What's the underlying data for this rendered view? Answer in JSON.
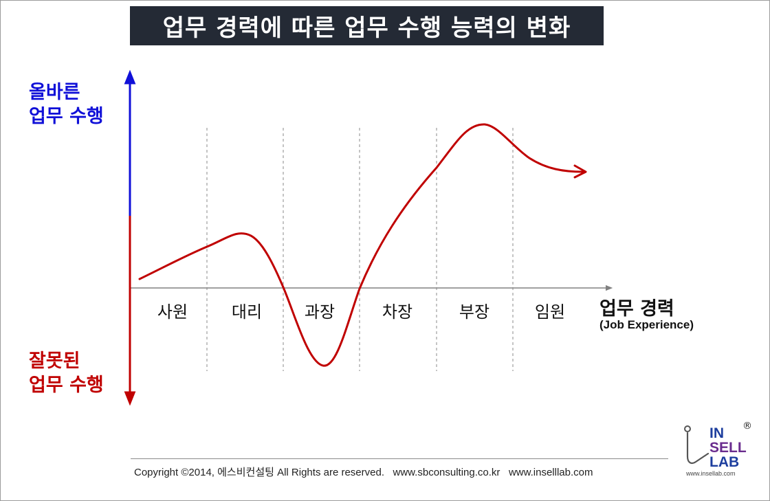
{
  "title": "업무 경력에 따른 업무 수행 능력의 변화",
  "y_axis": {
    "top_label": [
      "올바른",
      "업무 수행"
    ],
    "bottom_label": [
      "잘못된",
      "업무 수행"
    ]
  },
  "x_axis": {
    "label": "업무 경력",
    "sublabel": "(Job Experience)"
  },
  "stages": [
    "사원",
    "대리",
    "과장",
    "차장",
    "부장",
    "임원"
  ],
  "footer": {
    "copyright": "Copyright ©2014, 에스비컨설팅 All Rights are reserved.",
    "url1": "www.sbconsulting.co.kr",
    "url2": "www.inselllab.com"
  },
  "logo": {
    "line1": "IN",
    "line2": "SELL",
    "line3": "LAB",
    "registered": "®",
    "url": "www.insellab.com"
  },
  "colors": {
    "title_bg": "#242a35",
    "positive": "#1010d8",
    "negative": "#c00000",
    "curve": "#c00000",
    "logo_in": "#1d3e9e",
    "logo_sell": "#6a2c8e",
    "logo_lab": "#1d3e9e"
  }
}
